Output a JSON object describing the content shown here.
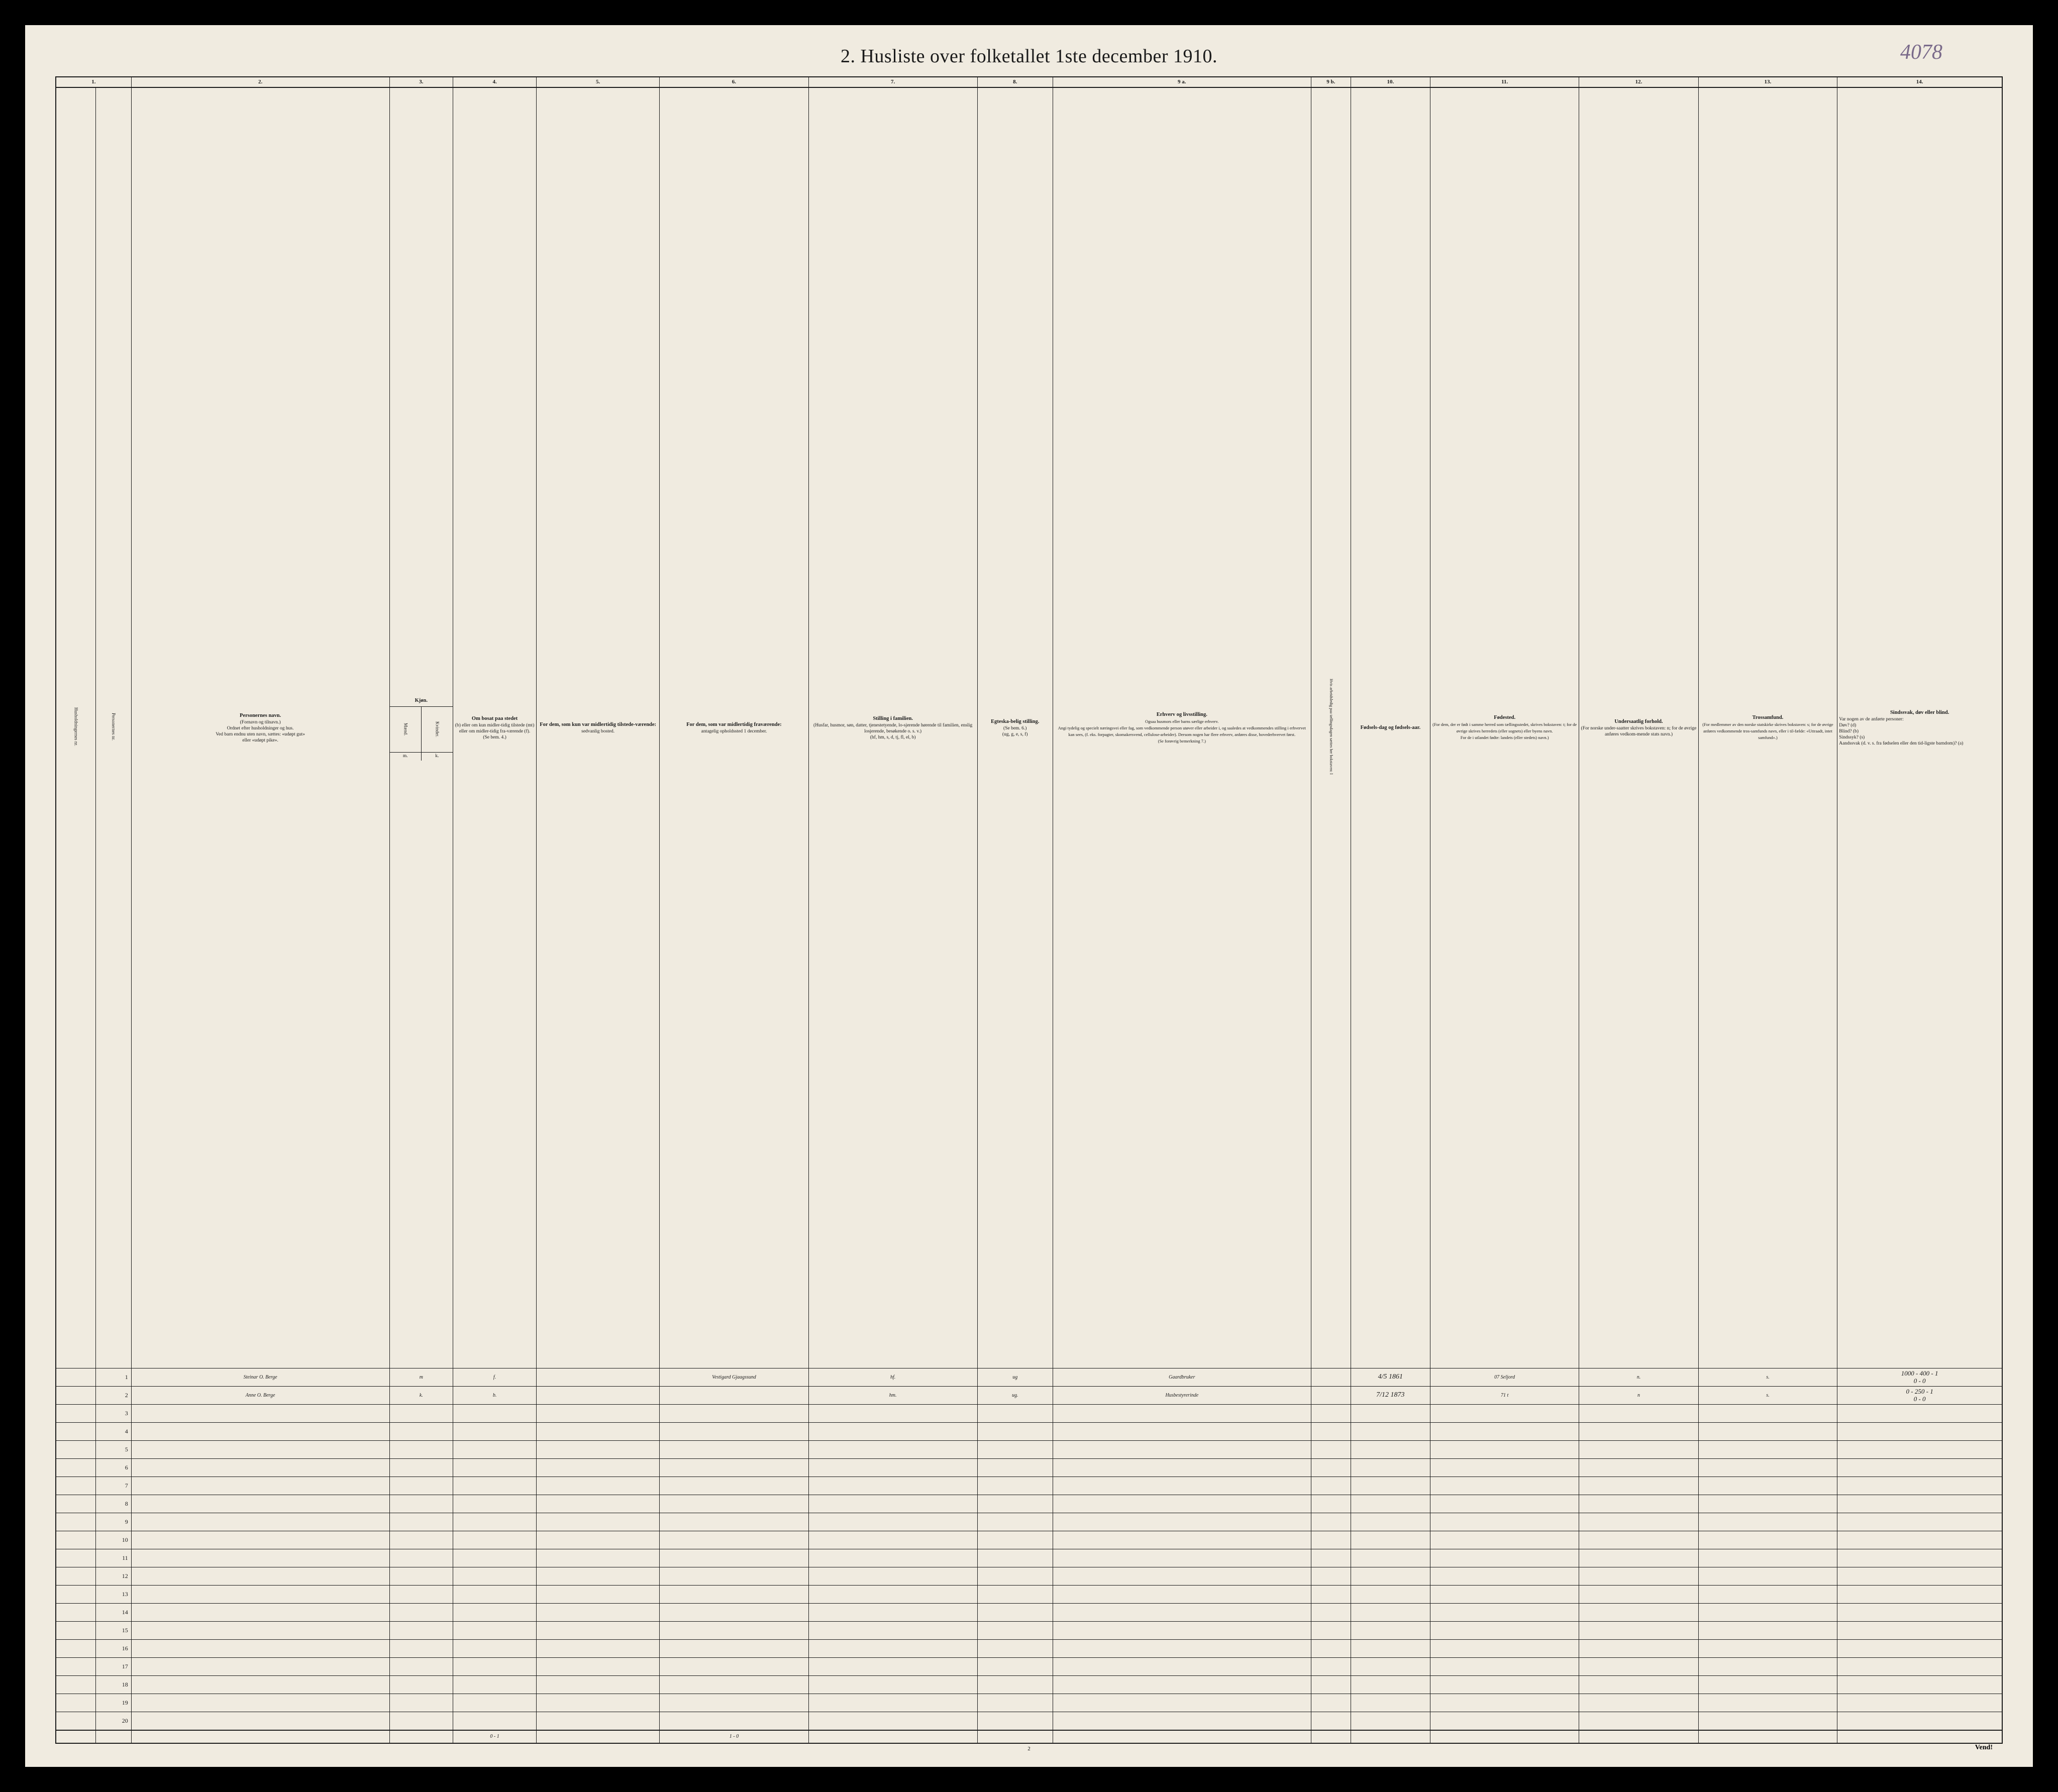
{
  "handwritten_top_right": "4078",
  "title": "2.  Husliste over folketallet 1ste december 1910.",
  "page_number": "2",
  "vend_label": "Vend!",
  "column_numbers": [
    "1.",
    "",
    "2.",
    "3.",
    "4.",
    "5.",
    "6.",
    "7.",
    "8.",
    "9 a.",
    "9 b.",
    "10.",
    "11.",
    "12.",
    "13.",
    "14."
  ],
  "headers": {
    "col1a": "Husholdningernes nr.",
    "col1b": "Personernes nr.",
    "col2_main": "Personernes navn.",
    "col2_sub": "(Fornavn og tilnavn.)\nOrdnet efter husholdninger og hus.\nVed barn endnu uten navn, sættes: «udøpt gut»\neller «udøpt pike».",
    "col3_main": "Kjøn.",
    "col3_sub_m": "Mænd.",
    "col3_sub_k": "Kvinder.",
    "col3_foot_m": "m.",
    "col3_foot_k": "k.",
    "col4_main": "Om bosat paa stedet",
    "col4_sub": "(b) eller om kun midler-tidig tilstede (mt) eller om midler-tidig fra-værende (f).\n(Se bem. 4.)",
    "col5_main": "For dem, som kun var midlertidig tilstede-værende:",
    "col5_sub": "sedvanlig bosted.",
    "col6_main": "For dem, som var midlertidig fraværende:",
    "col6_sub": "antagelig opholdssted 1 december.",
    "col7_main": "Stilling i familien.",
    "col7_sub": "(Husfar, husmor, søn, datter, tjenestetyende, lo-sjerende hørende til familien, enslig losjerende, besøkende o. s. v.)\n(hf, hm, s, d, tj, fl, el, b)",
    "col8_main": "Egteska-belig stilling.",
    "col8_sub": "(Se bem. 6.)\n(ug, g, e, s, f)",
    "col9a_main": "Erhverv og livsstilling.",
    "col9a_sub": "Ogsaa husmors eller barns særlige erhverv.\nAngi tydelig og specielt næringsvei eller fag, som vedkommende person utøver eller arbeider i, og saaledes at vedkommendes stilling i erhvervet kan sees, (f. eks. forpagter, skomakersvend, cellulose-arbeider). Dersom nogen har flere erhverv, anføres disse, hovederhvervet først.\n(Se forøvrig bemerkning 7.)",
    "col9b": "Hvis arbeidsledig paa tællingsdagen sættes her bokstaven: l",
    "col10_main": "Fødsels-dag og fødsels-aar.",
    "col11_main": "Fødested.",
    "col11_sub": "(For dem, der er født i samme herred som tællingsstedet, skrives bokstaven: t; for de øvrige skrives herredets (eller sognets) eller byens navn.\nFor de i utlandet fødte: landets (eller stedets) navn.)",
    "col12_main": "Undersaatlig forhold.",
    "col12_sub": "(For norske under-saatter skrives bokstaven: n; for de øvrige anføres vedkom-mende stats navn.)",
    "col13_main": "Trossamfund.",
    "col13_sub": "(For medlemmer av den norske statskirke skrives bokstaven: s; for de øvrige anføres vedkommende tros-samfunds navn, eller i til-fælde: «Uttraadt, intet samfund».)",
    "col14_main": "Sindssvak, døv eller blind.",
    "col14_sub": "Var nogen av de anførte personer:\nDøv?        (d)\nBlind?      (b)\nSindssyk?  (s)\nAandssvak (d. v. s. fra fødselen eller den tid-ligste barndom)? (a)"
  },
  "rows": [
    {
      "num": "1",
      "name": "Steinar O. Berge",
      "sex": "m",
      "bosat": "f.",
      "col5": "",
      "col6": "Vestigard Gjaagssund",
      "col7": "hf.",
      "col8": "ug",
      "col9a": "Gaardbruker",
      "col9b": "",
      "col10": "4/5 1861",
      "col11": "07 Seljord",
      "col12": "n.",
      "col13": "s.",
      "col14": "1000 - 400 - 1\n0 - 0"
    },
    {
      "num": "2",
      "name": "Anne O. Berge",
      "sex": "k.",
      "bosat": "b.",
      "col5": "",
      "col6": "",
      "col7": "hm.",
      "col8": "ug.",
      "col9a": "Husbestyrerinde",
      "col9b": "",
      "col10": "7/12 1873",
      "col11": "71  t",
      "col12": "n",
      "col13": "s.",
      "col14": "0 - 250 - 1\n0 - 0"
    }
  ],
  "empty_row_numbers": [
    "3",
    "4",
    "5",
    "6",
    "7",
    "8",
    "9",
    "10",
    "11",
    "12",
    "13",
    "14",
    "15",
    "16",
    "17",
    "18",
    "19",
    "20"
  ],
  "footer": {
    "col4": "0 - 1",
    "col6": "1 - 0"
  },
  "colors": {
    "page_bg": "#f0ebe0",
    "outer_bg": "#000000",
    "ink": "#1a1a1a",
    "handwriting": "#2a2a2a",
    "handwriting_faint": "#8a7a9a"
  }
}
